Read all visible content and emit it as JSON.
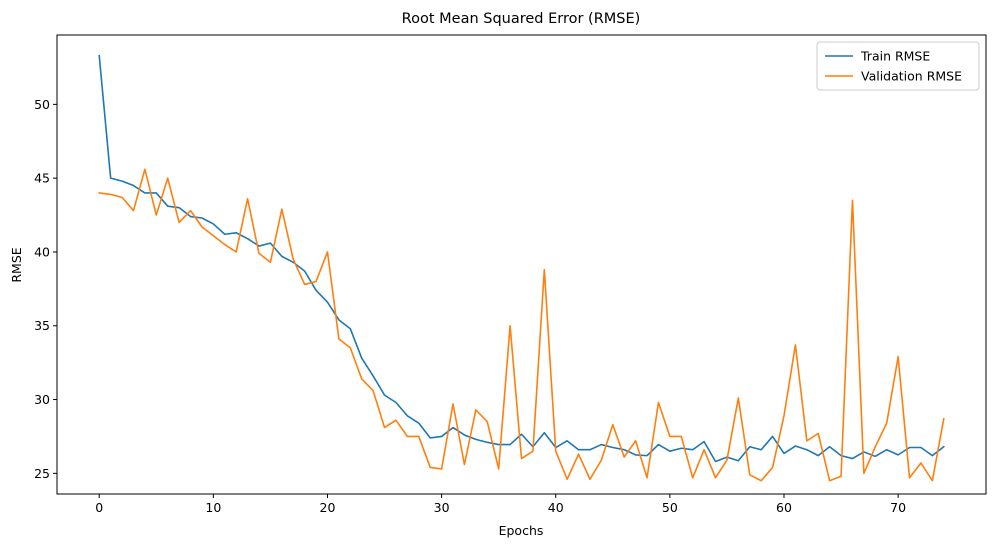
{
  "chart_data": {
    "type": "line",
    "title": "Root Mean Squared Error (RMSE)",
    "xlabel": "Epochs",
    "ylabel": "RMSE",
    "xlim": [
      -3.7,
      77.7
    ],
    "ylim": [
      23.6,
      54.7
    ],
    "xticks": [
      0,
      10,
      20,
      30,
      40,
      50,
      60,
      70
    ],
    "yticks": [
      25,
      30,
      35,
      40,
      45,
      50
    ],
    "grid": false,
    "legend": {
      "position": "top-right"
    },
    "series": [
      {
        "name": "Train RMSE",
        "color": "#1f77b4",
        "x": [
          0,
          1,
          2,
          3,
          4,
          5,
          6,
          7,
          8,
          9,
          10,
          11,
          12,
          13,
          14,
          15,
          16,
          17,
          18,
          19,
          20,
          21,
          22,
          23,
          24,
          25,
          26,
          27,
          28,
          29,
          30,
          31,
          32,
          33,
          34,
          35,
          36,
          37,
          38,
          39,
          40,
          41,
          42,
          43,
          44,
          45,
          46,
          47,
          48,
          49,
          50,
          51,
          52,
          53,
          54,
          55,
          56,
          57,
          58,
          59,
          60,
          61,
          62,
          63,
          64,
          65,
          66,
          67,
          68,
          69,
          70,
          71,
          72,
          73,
          74
        ],
        "values": [
          53.3,
          45.0,
          44.8,
          44.5,
          44.0,
          44.0,
          43.1,
          43.0,
          42.4,
          42.3,
          41.9,
          41.2,
          41.3,
          40.9,
          40.4,
          40.6,
          39.7,
          39.3,
          38.7,
          37.4,
          36.6,
          35.4,
          34.8,
          32.8,
          31.6,
          30.3,
          29.8,
          28.9,
          28.4,
          27.4,
          27.5,
          28.1,
          27.6,
          27.3,
          27.1,
          26.95,
          26.95,
          27.65,
          26.8,
          27.75,
          26.75,
          27.2,
          26.6,
          26.6,
          26.95,
          26.75,
          26.6,
          26.25,
          26.2,
          26.95,
          26.5,
          26.7,
          26.6,
          27.15,
          25.8,
          26.1,
          25.85,
          26.8,
          26.6,
          27.5,
          26.35,
          26.85,
          26.6,
          26.2,
          26.8,
          26.2,
          26.0,
          26.45,
          26.15,
          26.6,
          26.25,
          26.75,
          26.75,
          26.2,
          26.8
        ]
      },
      {
        "name": "Validation RMSE",
        "color": "#ff7f0e",
        "x": [
          0,
          1,
          2,
          3,
          4,
          5,
          6,
          7,
          8,
          9,
          10,
          11,
          12,
          13,
          14,
          15,
          16,
          17,
          18,
          19,
          20,
          21,
          22,
          23,
          24,
          25,
          26,
          27,
          28,
          29,
          30,
          31,
          32,
          33,
          34,
          35,
          36,
          37,
          38,
          39,
          40,
          41,
          42,
          43,
          44,
          45,
          46,
          47,
          48,
          49,
          50,
          51,
          52,
          53,
          54,
          55,
          56,
          57,
          58,
          59,
          60,
          61,
          62,
          63,
          64,
          65,
          66,
          67,
          68,
          69,
          70,
          71,
          72,
          73,
          74
        ],
        "values": [
          44.0,
          43.9,
          43.7,
          42.8,
          45.6,
          42.5,
          45.0,
          42.0,
          42.8,
          41.7,
          41.1,
          40.5,
          40.0,
          43.6,
          39.9,
          39.3,
          42.9,
          39.5,
          37.8,
          38.0,
          40.0,
          34.1,
          33.5,
          31.4,
          30.6,
          28.1,
          28.6,
          27.5,
          27.5,
          25.4,
          25.3,
          29.7,
          25.6,
          29.3,
          28.5,
          25.3,
          35.0,
          26.0,
          26.5,
          38.8,
          26.5,
          24.6,
          26.3,
          24.6,
          25.9,
          28.3,
          26.1,
          27.2,
          24.7,
          29.8,
          27.5,
          27.5,
          24.7,
          26.6,
          24.7,
          25.9,
          30.1,
          24.9,
          24.5,
          25.4,
          28.9,
          33.7,
          27.2,
          27.7,
          24.5,
          24.8,
          43.5,
          25.0,
          26.8,
          28.4,
          32.9,
          24.7,
          25.7,
          24.5,
          28.7
        ]
      }
    ]
  }
}
